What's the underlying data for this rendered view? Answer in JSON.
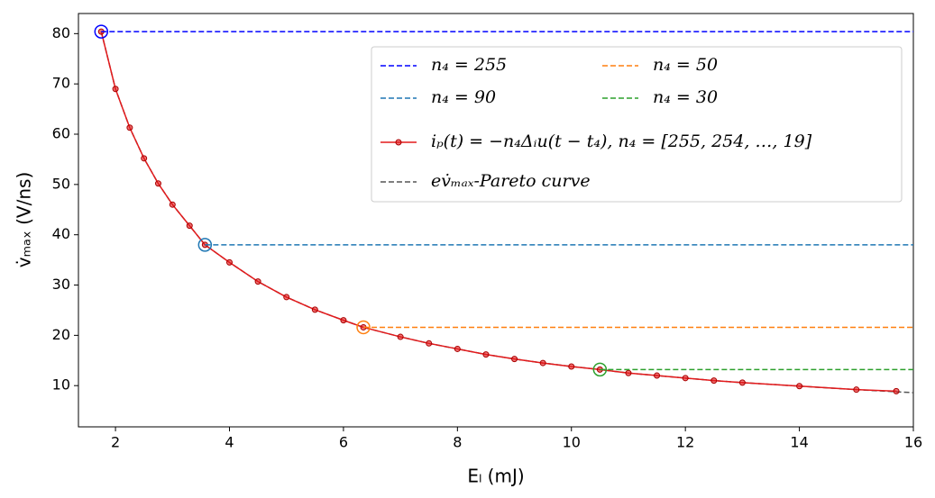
{
  "chart_data": {
    "type": "line",
    "xlabel": "Eₗ (mJ)",
    "ylabel": "v̇ₘₐₓ (V/ns)",
    "xlim": [
      1.35,
      16
    ],
    "ylim": [
      1.8,
      84
    ],
    "xticks": [
      2,
      4,
      6,
      8,
      10,
      12,
      14,
      16
    ],
    "yticks": [
      10,
      20,
      30,
      40,
      50,
      60,
      70,
      80
    ],
    "legend": "upper right",
    "series": [
      {
        "name": "n₄ = 255",
        "color": "#0000ff",
        "linestyle": "dashed",
        "x": [
          1.75,
          16
        ],
        "values": [
          80.4,
          80.4
        ]
      },
      {
        "name": "n₄ = 90",
        "color": "#1f77b4",
        "linestyle": "dashed",
        "x": [
          3.57,
          16
        ],
        "values": [
          38,
          38
        ]
      },
      {
        "name": "n₄ = 50",
        "color": "#ff7f0e",
        "linestyle": "dashed",
        "x": [
          6.35,
          16
        ],
        "values": [
          21.6,
          21.6
        ]
      },
      {
        "name": "n₄ = 30",
        "color": "#2ca02c",
        "linestyle": "dashed",
        "x": [
          10.5,
          16
        ],
        "values": [
          13.2,
          13.2
        ]
      },
      {
        "name": "iₚ(t) = −n₄Δᵢu(t − t₄), n₄ = [255, 254, …, 19]",
        "color": "#e41a1c",
        "linestyle": "solid",
        "x": [
          1.75,
          2,
          2.25,
          2.5,
          2.75,
          3,
          3.3,
          3.57,
          4,
          4.5,
          5,
          5.5,
          6,
          6.35,
          7,
          7.5,
          8,
          8.5,
          9,
          9.5,
          10,
          10.5,
          11,
          11.5,
          12,
          12.5,
          13,
          14,
          15,
          15.7
        ],
        "values": [
          80.4,
          69,
          61.3,
          55.2,
          50.2,
          46,
          41.8,
          38,
          34.5,
          30.7,
          27.6,
          25.1,
          23,
          21.6,
          19.7,
          18.4,
          17.3,
          16.2,
          15.3,
          14.5,
          13.8,
          13.2,
          12.5,
          12,
          11.5,
          11,
          10.6,
          9.9,
          9.2,
          8.9
        ]
      },
      {
        "name": "ev̇ₘₐₓ-Pareto curve",
        "color": "#555555",
        "linestyle": "dashed",
        "x": [
          1.75,
          2,
          2.25,
          2.5,
          2.75,
          3,
          3.3,
          3.57,
          4,
          4.5,
          5,
          5.5,
          6,
          6.35,
          7,
          7.5,
          8,
          8.5,
          9,
          9.5,
          10,
          10.5,
          11,
          11.5,
          12,
          12.5,
          13,
          14,
          15,
          16
        ],
        "values": [
          80.4,
          69,
          61.3,
          55.2,
          50.2,
          46,
          41.8,
          38,
          34.5,
          30.7,
          27.6,
          25.1,
          23,
          21.6,
          19.7,
          18.4,
          17.3,
          16.2,
          15.3,
          14.5,
          13.8,
          13.2,
          12.5,
          12,
          11.5,
          11,
          10.6,
          9.9,
          9.2,
          8.6
        ]
      }
    ]
  }
}
